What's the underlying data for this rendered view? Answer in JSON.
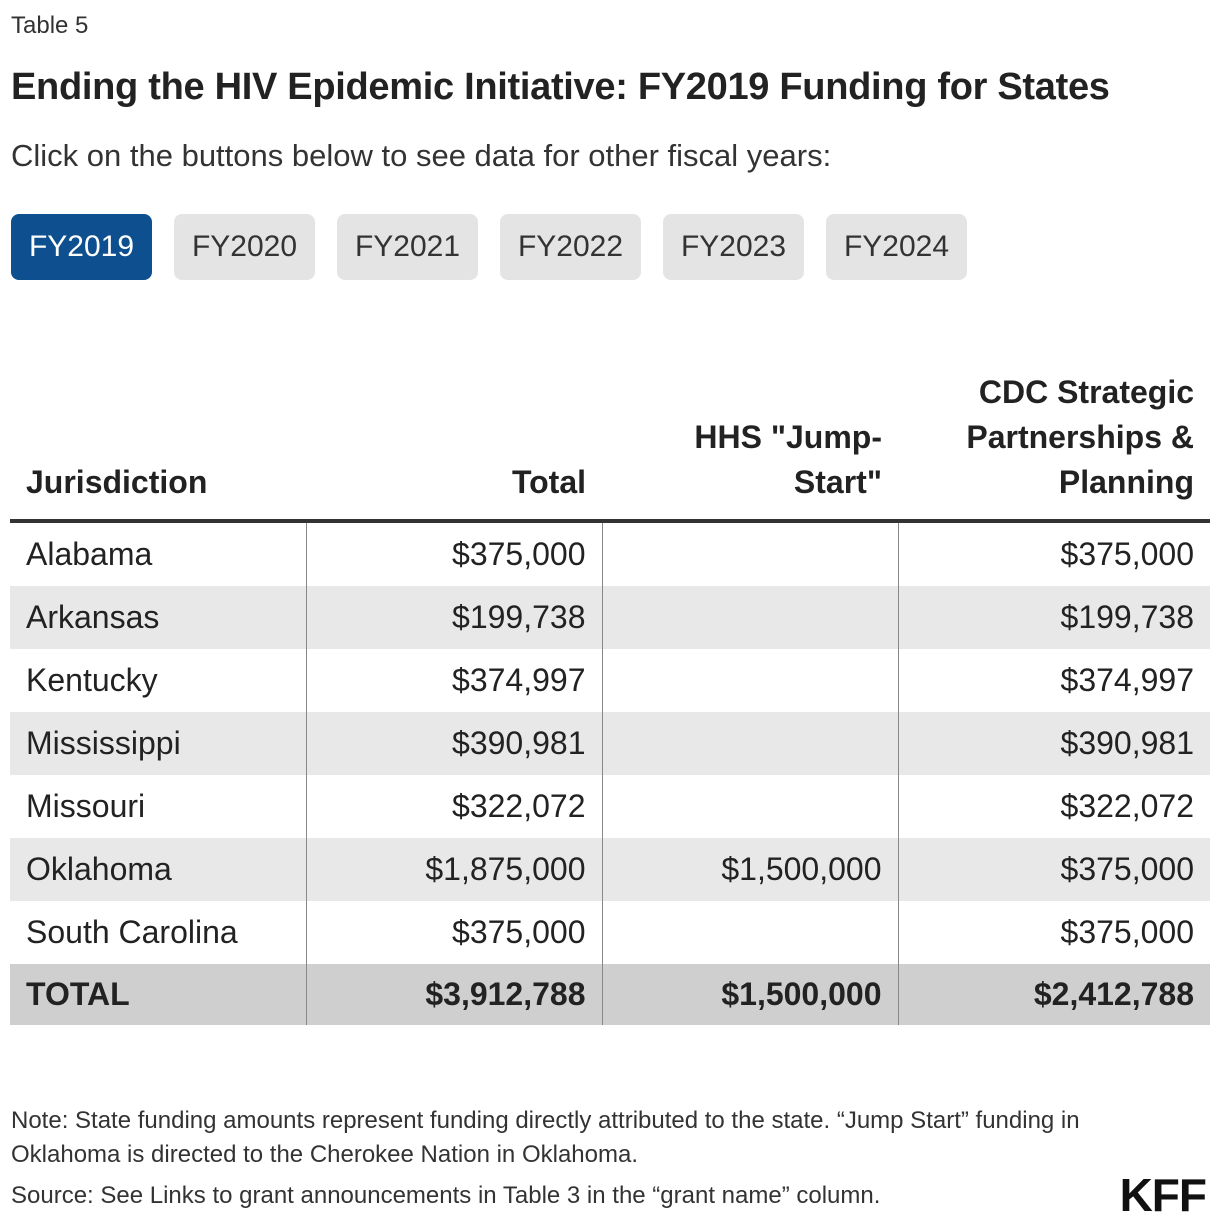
{
  "header": {
    "eyebrow": "Table 5",
    "title": "Ending the HIV Epidemic Initiative: FY2019 Funding for States",
    "subtitle": "Click on the buttons below to see data for other fiscal years:"
  },
  "year_buttons": [
    "FY2019",
    "FY2020",
    "FY2021",
    "FY2022",
    "FY2023",
    "FY2024"
  ],
  "selected_year": "FY2019",
  "table": {
    "headers": [
      "Jurisdiction",
      "Total",
      "HHS \"Jump-Start\"",
      "CDC Strategic Partnerships & Planning"
    ],
    "rows": [
      [
        "Alabama",
        "$375,000",
        "",
        "$375,000"
      ],
      [
        "Arkansas",
        "$199,738",
        "",
        "$199,738"
      ],
      [
        "Kentucky",
        "$374,997",
        "",
        "$374,997"
      ],
      [
        "Mississippi",
        "$390,981",
        "",
        "$390,981"
      ],
      [
        "Missouri",
        "$322,072",
        "",
        "$322,072"
      ],
      [
        "Oklahoma",
        "$1,875,000",
        "$1,500,000",
        "$375,000"
      ],
      [
        "South Carolina",
        "$375,000",
        "",
        "$375,000"
      ]
    ],
    "total": [
      "TOTAL",
      "$3,912,788",
      "$1,500,000",
      "$2,412,788"
    ]
  },
  "footer": {
    "note": "Note: State funding amounts represent funding directly attributed to the state. “Jump Start” funding in Oklahoma is directed to the Cherokee Nation in Oklahoma.",
    "source": "Source: See Links to grant announcements in Table 3 in the “grant name” column.",
    "logo": "KFF"
  },
  "colors": {
    "active_button": "#0d4f8f",
    "button": "#e4e4e4",
    "row_shade": "#e8e8e8",
    "total_row": "#cfcfcf"
  }
}
